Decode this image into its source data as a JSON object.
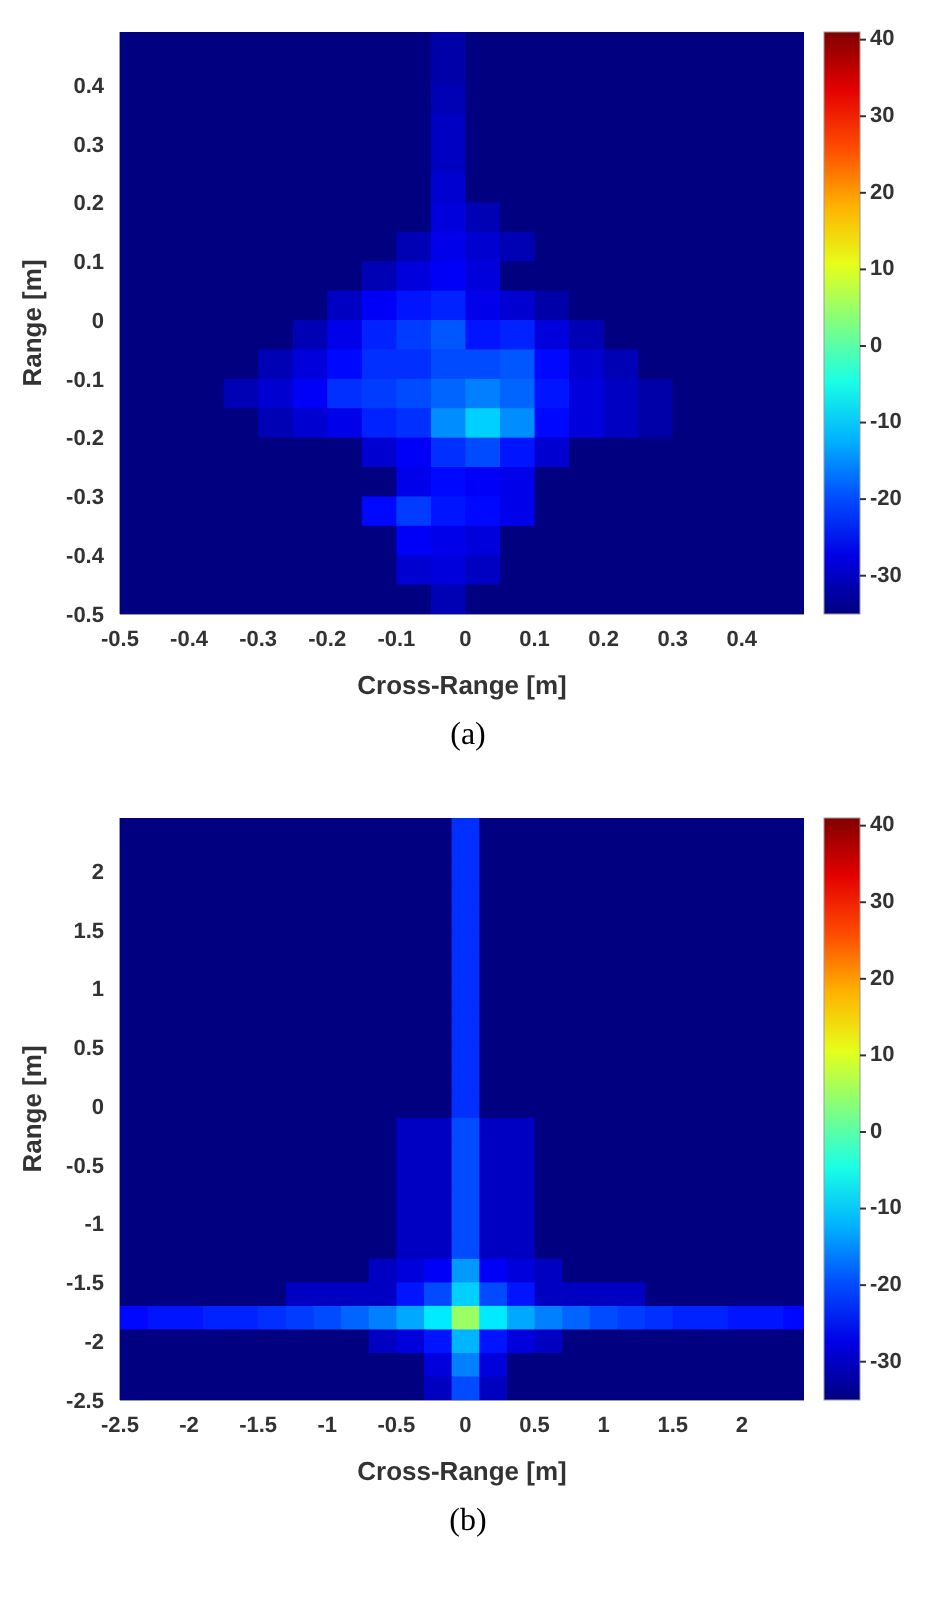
{
  "chart_data": [
    {
      "type": "heatmap",
      "title": "(a)",
      "xlabel": "Cross-Range [m]",
      "ylabel": "Range [m]",
      "xlim": [
        -0.5,
        0.49
      ],
      "ylim": [
        -0.5,
        0.49
      ],
      "xticks": [
        -0.5,
        -0.4,
        -0.3,
        -0.2,
        -0.1,
        0,
        0.1,
        0.2,
        0.3,
        0.4
      ],
      "yticks": [
        -0.5,
        -0.4,
        -0.3,
        -0.2,
        -0.1,
        0,
        0.1,
        0.2,
        0.3,
        0.4
      ],
      "clim": [
        -35,
        41
      ],
      "cticks": [
        -30,
        -20,
        -10,
        0,
        10,
        20,
        30,
        40
      ],
      "x": [
        -0.475,
        -0.425,
        -0.375,
        -0.325,
        -0.275,
        -0.225,
        -0.175,
        -0.125,
        -0.075,
        -0.025,
        0.025,
        0.075,
        0.125,
        0.175,
        0.225,
        0.275,
        0.325,
        0.375,
        0.425,
        0.475
      ],
      "y": [
        0.475,
        0.425,
        0.375,
        0.325,
        0.275,
        0.225,
        0.175,
        0.125,
        0.075,
        0.025,
        -0.025,
        -0.075,
        -0.125,
        -0.175,
        -0.225,
        -0.275,
        -0.325,
        -0.375,
        -0.425,
        -0.475
      ],
      "cells": [
        [
          -35,
          -35,
          -35,
          -35,
          -35,
          -35,
          -35,
          -35,
          -35,
          -32,
          -35,
          -35,
          -35,
          -35,
          -35,
          -35,
          -35,
          -35,
          -35,
          -35
        ],
        [
          -35,
          -35,
          -35,
          -35,
          -35,
          -35,
          -35,
          -35,
          -35,
          -32,
          -35,
          -35,
          -35,
          -35,
          -35,
          -35,
          -35,
          -35,
          -35,
          -35
        ],
        [
          -35,
          -35,
          -35,
          -35,
          -35,
          -35,
          -35,
          -35,
          -35,
          -31,
          -35,
          -35,
          -35,
          -35,
          -35,
          -35,
          -35,
          -35,
          -35,
          -35
        ],
        [
          -35,
          -35,
          -35,
          -35,
          -35,
          -35,
          -35,
          -35,
          -35,
          -30,
          -35,
          -35,
          -35,
          -35,
          -35,
          -35,
          -35,
          -35,
          -35,
          -35
        ],
        [
          -35,
          -35,
          -35,
          -35,
          -35,
          -35,
          -35,
          -35,
          -35,
          -30,
          -35,
          -35,
          -35,
          -35,
          -35,
          -35,
          -35,
          -35,
          -35,
          -35
        ],
        [
          -35,
          -35,
          -35,
          -35,
          -35,
          -35,
          -35,
          -35,
          -35,
          -29,
          -35,
          -35,
          -35,
          -35,
          -35,
          -35,
          -35,
          -35,
          -35,
          -35
        ],
        [
          -35,
          -35,
          -35,
          -35,
          -35,
          -35,
          -35,
          -35,
          -35,
          -28,
          -31,
          -35,
          -35,
          -35,
          -35,
          -35,
          -35,
          -35,
          -35,
          -35
        ],
        [
          -35,
          -35,
          -35,
          -35,
          -35,
          -35,
          -35,
          -35,
          -31,
          -27,
          -29,
          -31,
          -35,
          -35,
          -35,
          -35,
          -35,
          -35,
          -35,
          -35
        ],
        [
          -35,
          -35,
          -35,
          -35,
          -35,
          -35,
          -35,
          -31,
          -28,
          -26,
          -28,
          -35,
          -35,
          -35,
          -35,
          -35,
          -35,
          -35,
          -35,
          -35
        ],
        [
          -35,
          -35,
          -35,
          -35,
          -35,
          -35,
          -30,
          -26,
          -24,
          -23,
          -27,
          -29,
          -32,
          -35,
          -35,
          -35,
          -35,
          -35,
          -35,
          -35
        ],
        [
          -35,
          -35,
          -35,
          -35,
          -35,
          -31,
          -27,
          -23,
          -21,
          -19,
          -24,
          -23,
          -28,
          -31,
          -35,
          -35,
          -35,
          -35,
          -35,
          -35
        ],
        [
          -35,
          -35,
          -35,
          -35,
          -31,
          -28,
          -25,
          -22,
          -22,
          -20,
          -20,
          -19,
          -25,
          -29,
          -31,
          -35,
          -35,
          -35,
          -35,
          -35
        ],
        [
          -35,
          -35,
          -35,
          -31,
          -29,
          -26,
          -22,
          -21,
          -20,
          -18,
          -16,
          -18,
          -24,
          -28,
          -30,
          -32,
          -35,
          -35,
          -35,
          -35
        ],
        [
          -35,
          -35,
          -35,
          -35,
          -31,
          -29,
          -27,
          -23,
          -22,
          -15,
          -10,
          -15,
          -25,
          -28,
          -30,
          -32,
          -35,
          -35,
          -35,
          -35
        ],
        [
          -35,
          -35,
          -35,
          -35,
          -35,
          -35,
          -35,
          -29,
          -26,
          -22,
          -20,
          -24,
          -29,
          -35,
          -35,
          -35,
          -35,
          -35,
          -35,
          -35
        ],
        [
          -35,
          -35,
          -35,
          -35,
          -35,
          -35,
          -35,
          -35,
          -27,
          -25,
          -26,
          -27,
          -35,
          -35,
          -35,
          -35,
          -35,
          -35,
          -35,
          -35
        ],
        [
          -35,
          -35,
          -35,
          -35,
          -35,
          -35,
          -35,
          -25,
          -21,
          -24,
          -25,
          -27,
          -35,
          -35,
          -35,
          -35,
          -35,
          -35,
          -35,
          -35
        ],
        [
          -35,
          -35,
          -35,
          -35,
          -35,
          -35,
          -35,
          -35,
          -26,
          -27,
          -28,
          -35,
          -35,
          -35,
          -35,
          -35,
          -35,
          -35,
          -35,
          -35
        ],
        [
          -35,
          -35,
          -35,
          -35,
          -35,
          -35,
          -35,
          -35,
          -29,
          -28,
          -30,
          -35,
          -35,
          -35,
          -35,
          -35,
          -35,
          -35,
          -35,
          -35
        ],
        [
          -35,
          -35,
          -35,
          -35,
          -35,
          -35,
          -35,
          -35,
          -35,
          -31,
          -35,
          -35,
          -35,
          -35,
          -35,
          -35,
          -35,
          -35,
          -35,
          -35
        ]
      ]
    },
    {
      "type": "heatmap",
      "title": "(b)",
      "xlabel": "Cross-Range [m]",
      "ylabel": "Range [m]",
      "xlim": [
        -2.5,
        2.45
      ],
      "ylim": [
        -2.5,
        2.45
      ],
      "xticks": [
        -2.5,
        -2,
        -1.5,
        -1,
        -0.5,
        0,
        0.5,
        1,
        1.5,
        2
      ],
      "yticks": [
        -2.5,
        -2,
        -1.5,
        -1,
        -0.5,
        0,
        0.5,
        1,
        1.5,
        2
      ],
      "clim": [
        -35,
        41
      ],
      "cticks": [
        -30,
        -20,
        -10,
        0,
        10,
        20,
        30,
        40
      ],
      "x": [
        -2.4,
        -2.2,
        -2,
        -1.8,
        -1.6,
        -1.4,
        -1.2,
        -1,
        -0.8,
        -0.6,
        -0.4,
        -0.2,
        0,
        0.2,
        0.4,
        0.6,
        0.8,
        1,
        1.2,
        1.4,
        1.6,
        1.8,
        2,
        2.2,
        2.4
      ],
      "y": [
        2.4,
        2.2,
        2,
        1.8,
        1.6,
        1.4,
        1.2,
        1,
        0.8,
        0.6,
        0.4,
        0.2,
        0,
        -0.2,
        -0.4,
        -0.6,
        -0.8,
        -1,
        -1.2,
        -1.4,
        -1.6,
        -1.8,
        -2,
        -2.2,
        -2.4
      ],
      "cells": [
        [
          -35,
          -35,
          -35,
          -35,
          -35,
          -35,
          -35,
          -35,
          -35,
          -35,
          -35,
          -35,
          -22,
          -35,
          -35,
          -35,
          -35,
          -35,
          -35,
          -35,
          -35,
          -35,
          -35,
          -35,
          -35
        ],
        [
          -35,
          -35,
          -35,
          -35,
          -35,
          -35,
          -35,
          -35,
          -35,
          -35,
          -35,
          -35,
          -22,
          -35,
          -35,
          -35,
          -35,
          -35,
          -35,
          -35,
          -35,
          -35,
          -35,
          -35,
          -35
        ],
        [
          -35,
          -35,
          -35,
          -35,
          -35,
          -35,
          -35,
          -35,
          -35,
          -35,
          -35,
          -35,
          -22,
          -35,
          -35,
          -35,
          -35,
          -35,
          -35,
          -35,
          -35,
          -35,
          -35,
          -35,
          -35
        ],
        [
          -35,
          -35,
          -35,
          -35,
          -35,
          -35,
          -35,
          -35,
          -35,
          -35,
          -35,
          -35,
          -22,
          -35,
          -35,
          -35,
          -35,
          -35,
          -35,
          -35,
          -35,
          -35,
          -35,
          -35,
          -35
        ],
        [
          -35,
          -35,
          -35,
          -35,
          -35,
          -35,
          -35,
          -35,
          -35,
          -35,
          -35,
          -35,
          -22,
          -35,
          -35,
          -35,
          -35,
          -35,
          -35,
          -35,
          -35,
          -35,
          -35,
          -35,
          -35
        ],
        [
          -35,
          -35,
          -35,
          -35,
          -35,
          -35,
          -35,
          -35,
          -35,
          -35,
          -35,
          -35,
          -22,
          -35,
          -35,
          -35,
          -35,
          -35,
          -35,
          -35,
          -35,
          -35,
          -35,
          -35,
          -35
        ],
        [
          -35,
          -35,
          -35,
          -35,
          -35,
          -35,
          -35,
          -35,
          -35,
          -35,
          -35,
          -35,
          -22,
          -35,
          -35,
          -35,
          -35,
          -35,
          -35,
          -35,
          -35,
          -35,
          -35,
          -35,
          -35
        ],
        [
          -35,
          -35,
          -35,
          -35,
          -35,
          -35,
          -35,
          -35,
          -35,
          -35,
          -35,
          -35,
          -22,
          -35,
          -35,
          -35,
          -35,
          -35,
          -35,
          -35,
          -35,
          -35,
          -35,
          -35,
          -35
        ],
        [
          -35,
          -35,
          -35,
          -35,
          -35,
          -35,
          -35,
          -35,
          -35,
          -35,
          -35,
          -35,
          -22,
          -35,
          -35,
          -35,
          -35,
          -35,
          -35,
          -35,
          -35,
          -35,
          -35,
          -35,
          -35
        ],
        [
          -35,
          -35,
          -35,
          -35,
          -35,
          -35,
          -35,
          -35,
          -35,
          -35,
          -35,
          -35,
          -22,
          -35,
          -35,
          -35,
          -35,
          -35,
          -35,
          -35,
          -35,
          -35,
          -35,
          -35,
          -35
        ],
        [
          -35,
          -35,
          -35,
          -35,
          -35,
          -35,
          -35,
          -35,
          -35,
          -35,
          -35,
          -35,
          -22,
          -35,
          -35,
          -35,
          -35,
          -35,
          -35,
          -35,
          -35,
          -35,
          -35,
          -35,
          -35
        ],
        [
          -35,
          -35,
          -35,
          -35,
          -35,
          -35,
          -35,
          -35,
          -35,
          -35,
          -35,
          -35,
          -22,
          -35,
          -35,
          -35,
          -35,
          -35,
          -35,
          -35,
          -35,
          -35,
          -35,
          -35,
          -35
        ],
        [
          -35,
          -35,
          -35,
          -35,
          -35,
          -35,
          -35,
          -35,
          -35,
          -35,
          -35,
          -35,
          -22,
          -35,
          -35,
          -35,
          -35,
          -35,
          -35,
          -35,
          -35,
          -35,
          -35,
          -35,
          -35
        ],
        [
          -35,
          -35,
          -35,
          -35,
          -35,
          -35,
          -35,
          -35,
          -35,
          -35,
          -30,
          -30,
          -20,
          -30,
          -30,
          -35,
          -35,
          -35,
          -35,
          -35,
          -35,
          -35,
          -35,
          -35,
          -35
        ],
        [
          -35,
          -35,
          -35,
          -35,
          -35,
          -35,
          -35,
          -35,
          -35,
          -35,
          -30,
          -30,
          -20,
          -30,
          -30,
          -35,
          -35,
          -35,
          -35,
          -35,
          -35,
          -35,
          -35,
          -35,
          -35
        ],
        [
          -35,
          -35,
          -35,
          -35,
          -35,
          -35,
          -35,
          -35,
          -35,
          -35,
          -30,
          -30,
          -20,
          -30,
          -30,
          -35,
          -35,
          -35,
          -35,
          -35,
          -35,
          -35,
          -35,
          -35,
          -35
        ],
        [
          -35,
          -35,
          -35,
          -35,
          -35,
          -35,
          -35,
          -35,
          -35,
          -35,
          -30,
          -30,
          -20,
          -30,
          -30,
          -35,
          -35,
          -35,
          -35,
          -35,
          -35,
          -35,
          -35,
          -35,
          -35
        ],
        [
          -35,
          -35,
          -35,
          -35,
          -35,
          -35,
          -35,
          -35,
          -35,
          -35,
          -30,
          -30,
          -20,
          -30,
          -30,
          -35,
          -35,
          -35,
          -35,
          -35,
          -35,
          -35,
          -35,
          -35,
          -35
        ],
        [
          -35,
          -35,
          -35,
          -35,
          -35,
          -35,
          -35,
          -35,
          -35,
          -35,
          -30,
          -30,
          -20,
          -30,
          -30,
          -35,
          -35,
          -35,
          -35,
          -35,
          -35,
          -35,
          -35,
          -35,
          -35
        ],
        [
          -35,
          -35,
          -35,
          -35,
          -35,
          -35,
          -35,
          -35,
          -35,
          -30,
          -28,
          -26,
          -14,
          -26,
          -28,
          -30,
          -35,
          -35,
          -35,
          -35,
          -35,
          -35,
          -35,
          -35,
          -35
        ],
        [
          -35,
          -35,
          -35,
          -35,
          -35,
          -35,
          -30,
          -30,
          -30,
          -30,
          -24,
          -20,
          -10,
          -20,
          -24,
          -30,
          -30,
          -30,
          -30,
          -35,
          -35,
          -35,
          -35,
          -35,
          -35
        ],
        [
          -25,
          -24,
          -24,
          -23,
          -23,
          -22,
          -21,
          -20,
          -18,
          -16,
          -13,
          -8,
          5,
          -8,
          -13,
          -16,
          -18,
          -20,
          -21,
          -22,
          -23,
          -23,
          -24,
          -24,
          -25
        ],
        [
          -35,
          -35,
          -35,
          -35,
          -35,
          -35,
          -35,
          -35,
          -35,
          -30,
          -28,
          -24,
          -12,
          -24,
          -28,
          -30,
          -35,
          -35,
          -35,
          -35,
          -35,
          -35,
          -35,
          -35,
          -35
        ],
        [
          -35,
          -35,
          -35,
          -35,
          -35,
          -35,
          -35,
          -35,
          -35,
          -35,
          -35,
          -28,
          -16,
          -28,
          -35,
          -35,
          -35,
          -35,
          -35,
          -35,
          -35,
          -35,
          -35,
          -35,
          -35
        ],
        [
          -35,
          -35,
          -35,
          -35,
          -35,
          -35,
          -35,
          -35,
          -35,
          -35,
          -35,
          -30,
          -20,
          -30,
          -35,
          -35,
          -35,
          -35,
          -35,
          -35,
          -35,
          -35,
          -35,
          -35,
          -35
        ]
      ]
    }
  ]
}
